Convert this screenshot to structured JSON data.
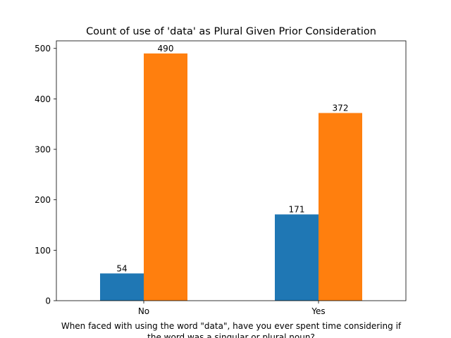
{
  "chart_data": {
    "type": "bar",
    "title": "Count of use of 'data' as Plural Given Prior Consideration",
    "xlabel_lines": [
      "When faced with using the word \"data\", have you ever spent time considering if",
      "the word was a singular or plural noun?"
    ],
    "ylabel": "",
    "categories": [
      "No",
      "Yes"
    ],
    "series": [
      {
        "values": [
          54,
          171
        ],
        "color": "#1f77b4"
      },
      {
        "values": [
          490,
          372
        ],
        "color": "#ff7f0e"
      }
    ],
    "ylim": [
      0,
      515
    ],
    "yticks": [
      0,
      100,
      200,
      300,
      400,
      500
    ],
    "grid": false,
    "legend": "none"
  }
}
